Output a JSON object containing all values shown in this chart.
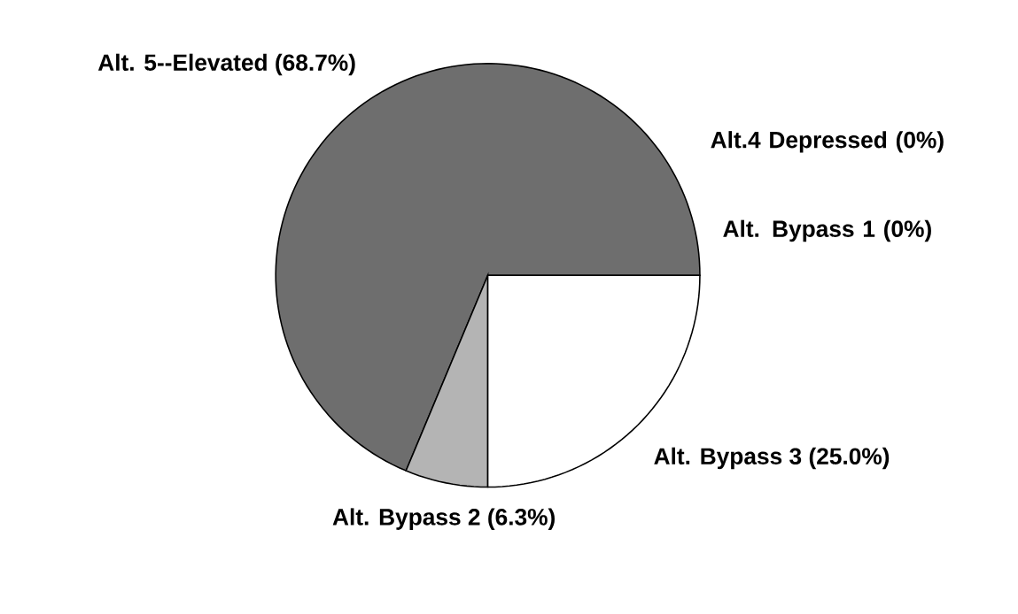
{
  "chart_data": {
    "type": "pie",
    "categories": [
      "Alt.4 Depressed",
      "Alt. Bypass 1",
      "Alt. 5--Elevated",
      "Alt. Bypass 2",
      "Alt. Bypass 3"
    ],
    "values": [
      0,
      0,
      68.7,
      6.3,
      25.0
    ],
    "value_labels": [
      "(0%)",
      "(0%)",
      "(68.7%)",
      "(6.3%)",
      "(25.0%)"
    ],
    "colors": [
      "#ffffff",
      "#ffffff",
      "#6e6e6e",
      "#b4b4b4",
      "#ffffff"
    ]
  }
}
